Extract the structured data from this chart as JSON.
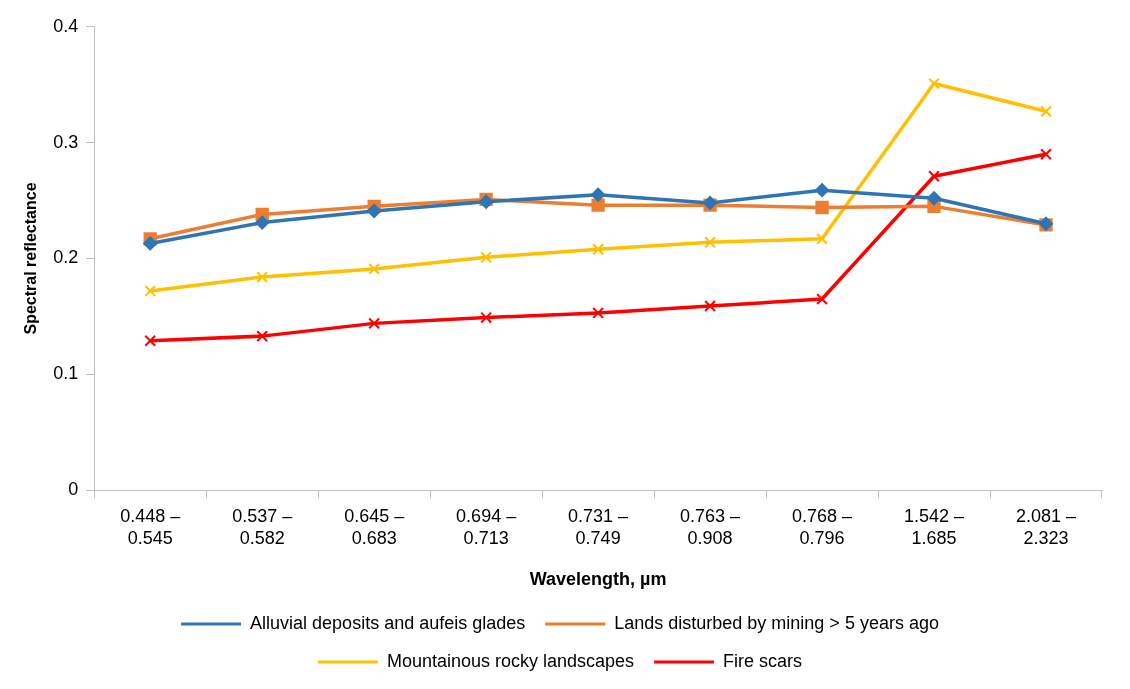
{
  "chart_data": {
    "type": "line",
    "xlabel": "Wavelength, µm",
    "ylabel": "Spectral reflectance",
    "categories": [
      "0.448 – 0.545",
      "0.537 – 0.582",
      "0.645 – 0.683",
      "0.694 – 0.713",
      "0.731 – 0.749",
      "0.763 – 0.908",
      "0.768 – 0.796",
      "1.542 – 1.685",
      "2.081 – 2.323"
    ],
    "series": [
      {
        "name": "Alluvial deposits and aufeis glades",
        "color": "#2e75b6",
        "marker": "diamond",
        "values": [
          0.213,
          0.231,
          0.241,
          0.249,
          0.255,
          0.248,
          0.259,
          0.252,
          0.23
        ]
      },
      {
        "name": "Lands disturbed by mining > 5 years ago",
        "color": "#ed7d31",
        "marker": "square",
        "values": [
          0.217,
          0.238,
          0.245,
          0.251,
          0.246,
          0.246,
          0.244,
          0.245,
          0.229
        ]
      },
      {
        "name": "Mountainous rocky landscapes",
        "color": "#ffc000",
        "marker": "cross",
        "values": [
          0.172,
          0.184,
          0.191,
          0.201,
          0.208,
          0.214,
          0.217,
          0.351,
          0.327
        ]
      },
      {
        "name": "Fire scars",
        "color": "#ff0000",
        "marker": "cross",
        "values": [
          0.129,
          0.133,
          0.144,
          0.149,
          0.153,
          0.159,
          0.165,
          0.271,
          0.29
        ]
      }
    ],
    "ylim": [
      0,
      0.4
    ],
    "yticks": [
      0,
      0.1,
      0.2,
      0.3,
      0.4
    ],
    "grid": false,
    "legend": "bottom"
  }
}
